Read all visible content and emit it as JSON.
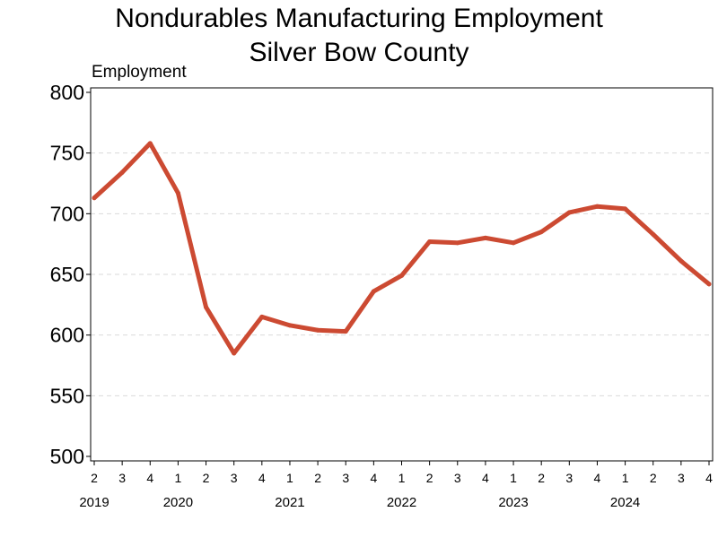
{
  "chart_data": {
    "type": "line",
    "title": "Nondurables Manufacturing Employment",
    "subtitle": "Silver Bow County",
    "ylabel": "Employment",
    "xlabel": "",
    "ylim": [
      500,
      800
    ],
    "yticks": [
      500,
      550,
      600,
      650,
      700,
      750,
      800
    ],
    "grid": "horizontal dashed",
    "categories": [
      "2",
      "3",
      "4",
      "1",
      "2",
      "3",
      "4",
      "1",
      "2",
      "3",
      "4",
      "1",
      "2",
      "3",
      "4",
      "1",
      "2",
      "3",
      "4",
      "1",
      "2",
      "3",
      "4"
    ],
    "years": [
      {
        "label": "2019",
        "start_index": 0
      },
      {
        "label": "2020",
        "start_index": 3
      },
      {
        "label": "2021",
        "start_index": 7
      },
      {
        "label": "2022",
        "start_index": 11
      },
      {
        "label": "2023",
        "start_index": 15
      },
      {
        "label": "2024",
        "start_index": 19
      }
    ],
    "series": [
      {
        "color": "#cc4a32",
        "values": [
          713,
          734,
          758,
          717,
          623,
          585,
          615,
          608,
          604,
          603,
          636,
          649,
          677,
          676,
          680,
          676,
          685,
          701,
          706,
          704,
          683,
          661,
          642
        ]
      }
    ]
  }
}
